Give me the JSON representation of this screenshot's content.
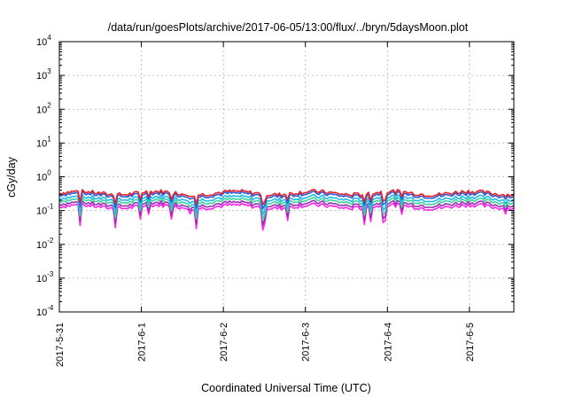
{
  "chart_data": {
    "type": "line",
    "title": "/data/run/goesPlots/archive/2017-06-05/13:00/flux/../bryn/5daysMoon.plot",
    "xlabel": "Coordinated Universal Time (UTC)",
    "ylabel": "cGy/day",
    "yscale": "log",
    "ylim": [
      0.0001,
      10000
    ],
    "y_ticks": [
      {
        "base": "10",
        "exp": "-4",
        "value": 0.0001
      },
      {
        "base": "10",
        "exp": "-3",
        "value": 0.001
      },
      {
        "base": "10",
        "exp": "-2",
        "value": 0.01
      },
      {
        "base": "10",
        "exp": "-1",
        "value": 0.1
      },
      {
        "base": "10",
        "exp": "0",
        "value": 1
      },
      {
        "base": "10",
        "exp": "1",
        "value": 10
      },
      {
        "base": "10",
        "exp": "2",
        "value": 100
      },
      {
        "base": "10",
        "exp": "3",
        "value": 1000
      },
      {
        "base": "10",
        "exp": "4",
        "value": 10000
      }
    ],
    "xlim": [
      "2017-05-31T00:00",
      "2017-06-05T13:00"
    ],
    "x_ticks": [
      "2017-5-31",
      "2017-6-1",
      "2017-6-2",
      "2017-6-3",
      "2017-6-4",
      "2017-6-5"
    ],
    "grid": true,
    "legend": "none",
    "series": [
      {
        "color": "#e8202a",
        "level": 0.33
      },
      {
        "color": "#2b5fd9",
        "level": 0.29
      },
      {
        "color": "#22b8e8",
        "level": 0.23
      },
      {
        "color": "#3ad49a",
        "level": 0.19
      },
      {
        "color": "#9a2fb0",
        "level": 0.155
      },
      {
        "color": "#ff22ee",
        "level": 0.13
      }
    ]
  }
}
